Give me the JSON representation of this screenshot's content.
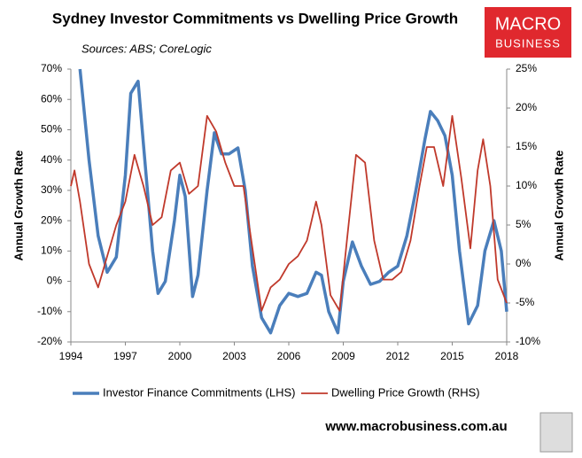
{
  "chart_data": {
    "type": "line",
    "title": "Sydney Investor Commitments vs Dwelling Price Growth",
    "subtitle": "Sources: ABS; CoreLogic",
    "logo": [
      "MACRO",
      "BUSINESS"
    ],
    "website": "www.macrobusiness.com.au",
    "ylabel": "Annual Growth Rate",
    "y2label": "Annual Growth Rate",
    "xlim": [
      1994,
      2018
    ],
    "xticks": [
      1994,
      1997,
      2000,
      2003,
      2006,
      2009,
      2012,
      2015,
      2018
    ],
    "ylim": [
      -20,
      70
    ],
    "yticks": [
      {
        "value": -20,
        "label": "-20%"
      },
      {
        "value": -10,
        "label": "-10%"
      },
      {
        "value": 0,
        "label": "0%"
      },
      {
        "value": 10,
        "label": "10%"
      },
      {
        "value": 20,
        "label": "20%"
      },
      {
        "value": 30,
        "label": "30%"
      },
      {
        "value": 40,
        "label": "40%"
      },
      {
        "value": 50,
        "label": "50%"
      },
      {
        "value": 60,
        "label": "60%"
      },
      {
        "value": 70,
        "label": "70%"
      }
    ],
    "y2lim": [
      -10,
      25
    ],
    "y2ticks": [
      {
        "value": -10,
        "label": "-10%"
      },
      {
        "value": -5,
        "label": "-5%"
      },
      {
        "value": 0,
        "label": "0%"
      },
      {
        "value": 5,
        "label": "5%"
      },
      {
        "value": 10,
        "label": "10%"
      },
      {
        "value": 15,
        "label": "15%"
      },
      {
        "value": 20,
        "label": "20%"
      },
      {
        "value": 25,
        "label": "25%"
      }
    ],
    "grid": false,
    "series": [
      {
        "name": "Investor Finance Commitments (LHS)",
        "color": "#4a7ebb",
        "width": 3.5,
        "x": [
          1994.5,
          1995.0,
          1995.5,
          1996.0,
          1996.5,
          1997.0,
          1997.3,
          1997.7,
          1998.0,
          1998.5,
          1998.8,
          1999.2,
          1999.7,
          2000.0,
          2000.3,
          2000.7,
          2001.0,
          2001.5,
          2001.9,
          2002.3,
          2002.7,
          2003.2,
          2003.6,
          2004.0,
          2004.5,
          2005.0,
          2005.5,
          2006.0,
          2006.5,
          2007.0,
          2007.5,
          2007.8,
          2008.2,
          2008.7,
          2009.0,
          2009.5,
          2010.0,
          2010.5,
          2011.0,
          2011.5,
          2012.0,
          2012.5,
          2013.0,
          2013.5,
          2013.8,
          2014.2,
          2014.6,
          2015.0,
          2015.4,
          2015.9,
          2016.4,
          2016.8,
          2017.3,
          2017.7,
          2018.0
        ],
        "values": [
          70,
          40,
          15,
          3,
          8,
          35,
          62,
          66,
          45,
          10,
          -4,
          0,
          20,
          35,
          28,
          -5,
          2,
          30,
          49,
          42,
          42,
          44,
          30,
          5,
          -12,
          -17,
          -8,
          -4,
          -5,
          -4,
          3,
          2,
          -10,
          -17,
          0,
          13,
          5,
          -1,
          0,
          3,
          5,
          15,
          30,
          47,
          56,
          53,
          48,
          35,
          10,
          -14,
          -8,
          10,
          20,
          10,
          -10
        ]
      },
      {
        "name": "Dwelling Price Growth (RHS)",
        "color": "#c0392b",
        "width": 1.8,
        "axis": "y2",
        "x": [
          1994.0,
          1994.2,
          1994.5,
          1995.0,
          1995.5,
          1996.0,
          1996.5,
          1997.0,
          1997.5,
          1998.0,
          1998.5,
          1999.0,
          1999.5,
          2000.0,
          2000.5,
          2001.0,
          2001.5,
          2002.0,
          2002.5,
          2003.0,
          2003.5,
          2004.0,
          2004.5,
          2005.0,
          2005.5,
          2006.0,
          2006.5,
          2007.0,
          2007.5,
          2007.8,
          2008.3,
          2008.8,
          2009.2,
          2009.7,
          2010.2,
          2010.7,
          2011.2,
          2011.7,
          2012.2,
          2012.7,
          2013.2,
          2013.6,
          2014.0,
          2014.5,
          2015.0,
          2015.5,
          2016.0,
          2016.4,
          2016.7,
          2017.1,
          2017.5,
          2018.0
        ],
        "values": [
          10,
          12,
          8,
          0,
          -3,
          1,
          5,
          8,
          14,
          10,
          5,
          6,
          12,
          13,
          9,
          10,
          19,
          17,
          13,
          10,
          10,
          2,
          -6,
          -3,
          -2,
          0,
          1,
          3,
          8,
          5,
          -4,
          -6,
          3,
          14,
          13,
          3,
          -2,
          -2,
          -1,
          3,
          10,
          15,
          15,
          10,
          19,
          11,
          2,
          12,
          16,
          10,
          -2,
          -5
        ]
      }
    ]
  }
}
